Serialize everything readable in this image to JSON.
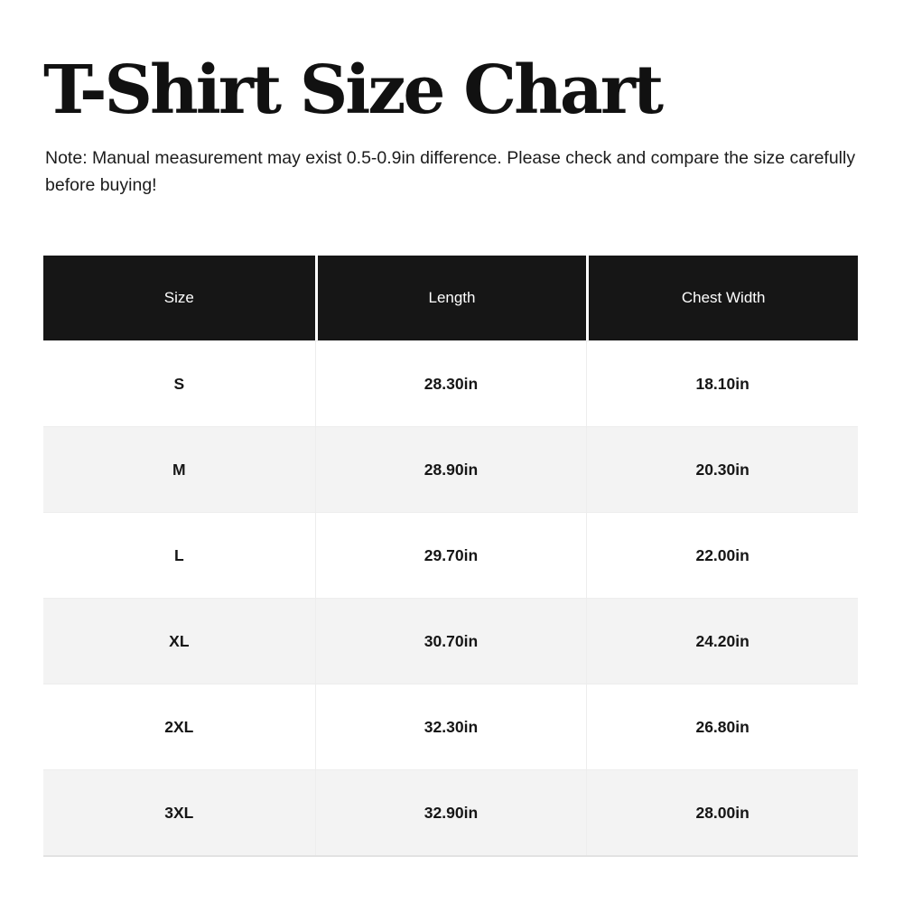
{
  "page": {
    "title": "T-Shirt Size Chart",
    "note": "Note: Manual measurement may exist 0.5-0.9in difference. Please check and compare the size carefully before buying!"
  },
  "chart_data": {
    "type": "table",
    "title": "T-Shirt Size Chart",
    "note": "Note: Manual measurement may exist 0.5-0.9in difference. Please check and compare the size carefully before buying!",
    "columns": [
      "Size",
      "Length",
      "Chest Width"
    ],
    "rows": [
      [
        "S",
        "28.30in",
        "18.10in"
      ],
      [
        "M",
        "28.90in",
        "20.30in"
      ],
      [
        "L",
        "29.70in",
        "22.00in"
      ],
      [
        "XL",
        "30.70in",
        "24.20in"
      ],
      [
        "2XL",
        "32.30in",
        "26.80in"
      ],
      [
        "3XL",
        "32.90in",
        "28.00in"
      ]
    ],
    "units": "in",
    "layout": {
      "legend": "none",
      "grid": "zebra-rows",
      "header_bg": "#161616",
      "header_text_color": "#ffffff",
      "row_bg": "#ffffff",
      "zebra_row_bg": "#f3f3f3",
      "cell_text_color": "#161616",
      "page_bg": "#ffffff"
    }
  }
}
